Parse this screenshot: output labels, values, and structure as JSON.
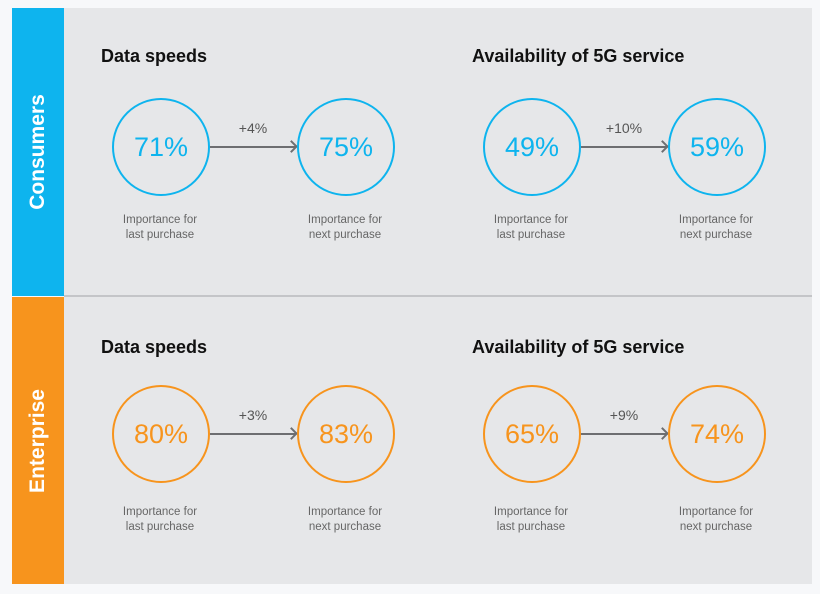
{
  "colors": {
    "consumers": "#0eb4ee",
    "enterprise": "#f7941d",
    "panel": "#e6e7e9"
  },
  "sections": [
    {
      "label": "Consumers",
      "metrics": [
        {
          "title": "Data speeds",
          "last": "71%",
          "next": "75%",
          "delta": "+4%"
        },
        {
          "title": "Availability of 5G service",
          "last": "49%",
          "next": "59%",
          "delta": "+10%"
        }
      ]
    },
    {
      "label": "Enterprise",
      "metrics": [
        {
          "title": "Data speeds",
          "last": "80%",
          "next": "83%",
          "delta": "+3%"
        },
        {
          "title": "Availability of 5G service",
          "last": "65%",
          "next": "74%",
          "delta": "+9%"
        }
      ]
    }
  ],
  "captions": {
    "last_line1": "Importance for",
    "last_line2": "last purchase",
    "next_line1": "Importance for",
    "next_line2": "next purchase"
  }
}
